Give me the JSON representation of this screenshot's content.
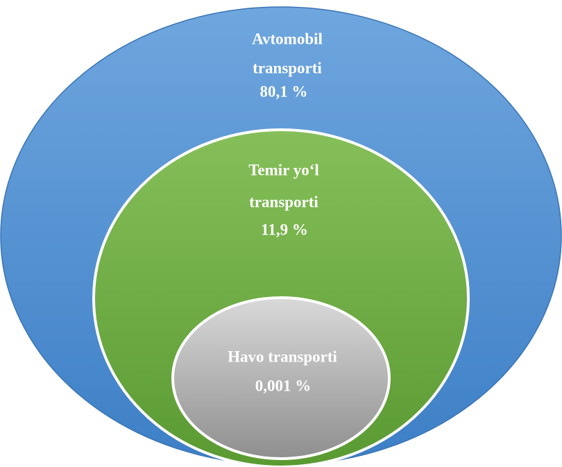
{
  "nodes": [
    {
      "lines": [
        "Avtomobil",
        "transporti"
      ],
      "value": "80,1 %"
    },
    {
      "lines": [
        "Temir yo‘l",
        "transporti"
      ],
      "value": "11,9 %"
    },
    {
      "lines": [
        "Havo transporti"
      ],
      "value": "0,001 %"
    }
  ]
}
